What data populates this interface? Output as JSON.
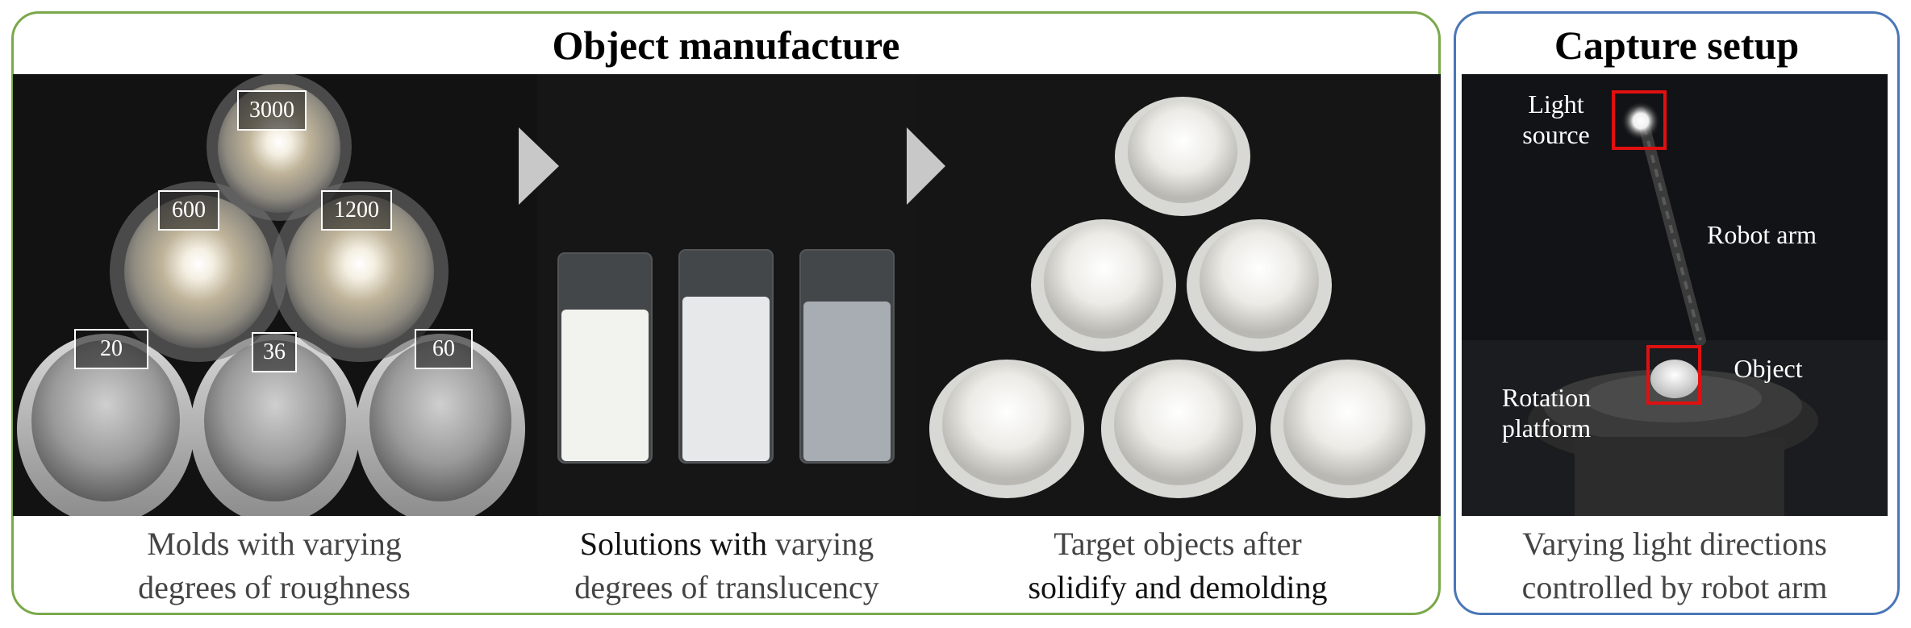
{
  "manufacture": {
    "title": "Object manufacture",
    "molds": {
      "labels": [
        "3000",
        "600",
        "1200",
        "20",
        "36",
        "60"
      ],
      "caption_line1": "Molds with varying",
      "caption_line2": "degrees of roughness"
    },
    "solutions": {
      "caption_line1_dark": "Solutions with",
      "caption_line1_light": "varying",
      "caption_line2": "degrees of translucency"
    },
    "targets": {
      "caption_line1": "Target objects after",
      "caption_line2": "solidify and demolding"
    }
  },
  "capture": {
    "title": "Capture setup",
    "labels": {
      "light_source_line1": "Light",
      "light_source_line2": "source",
      "robot_arm": "Robot arm",
      "object": "Object",
      "rotation_line1": "Rotation",
      "rotation_line2": "platform"
    },
    "caption_line1": "Varying light directions",
    "caption_line2": "controlled by robot arm"
  },
  "colors": {
    "left_border": "#7aa84a",
    "right_border": "#4a76b8",
    "highlight_box": "#e01010",
    "arrow": "#c8c8c8"
  }
}
